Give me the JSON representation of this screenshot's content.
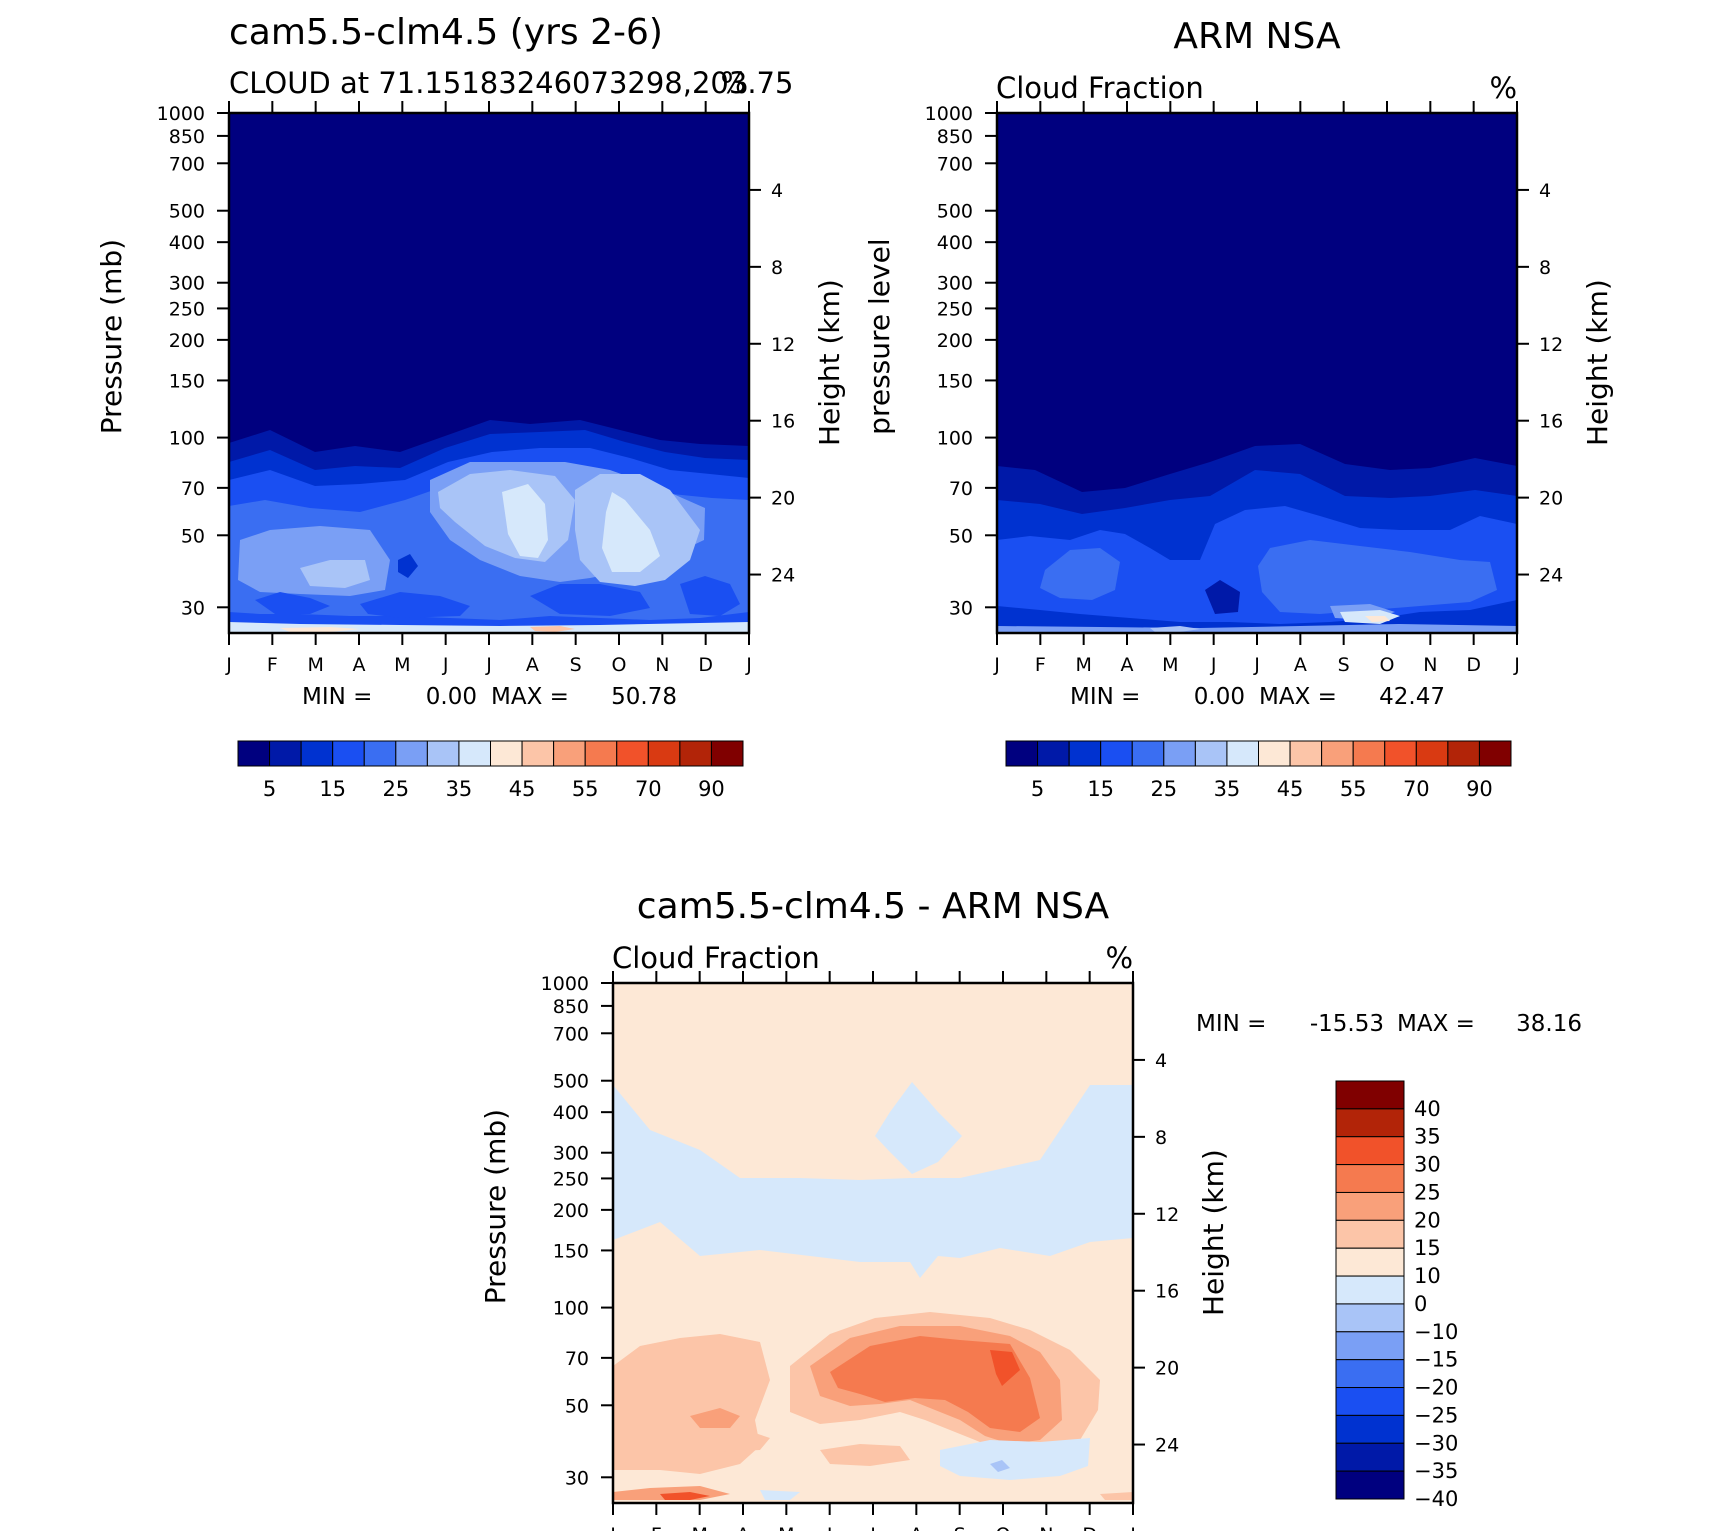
{
  "chart_data": [
    {
      "type": "heatmap",
      "title": "cam5.5-clm4.5 (yrs 2-6)",
      "subtitle": "CLOUD at 71.15183246073298,203.75",
      "units": "%",
      "ylabel": "Pressure (mb)",
      "ylabel_right": "Height (km)",
      "x_ticks": [
        "J",
        "F",
        "M",
        "A",
        "M",
        "J",
        "J",
        "A",
        "S",
        "O",
        "N",
        "D",
        "J"
      ],
      "y_ticks": [
        30,
        50,
        70,
        100,
        150,
        200,
        250,
        300,
        400,
        500,
        700,
        850,
        1000
      ],
      "y_right_ticks": [
        24,
        20,
        16,
        12,
        8,
        4
      ],
      "ylim": [
        1000,
        25
      ],
      "yscale": "log",
      "min_label": "MIN =",
      "min_value": "0.00",
      "max_label": "MAX =",
      "max_value": "50.78",
      "colorbar": {
        "orientation": "horizontal",
        "colors": [
          "#00007f",
          "#0019a8",
          "#0032d0",
          "#1a4ff2",
          "#3a6ef2",
          "#7a9ff5",
          "#a9c4f7",
          "#d6e8fb",
          "#fde8d6",
          "#fcc5a8",
          "#f9a07a",
          "#f57a4f",
          "#f1522a",
          "#d93a12",
          "#b22408",
          "#800000"
        ],
        "labels": [
          "5",
          "15",
          "25",
          "35",
          "45",
          "55",
          "70",
          "90"
        ]
      }
    },
    {
      "type": "heatmap",
      "title": "ARM NSA",
      "subtitle": "Cloud Fraction",
      "units": "%",
      "ylabel": "pressure level",
      "ylabel_right": "Height (km)",
      "x_ticks": [
        "J",
        "F",
        "M",
        "A",
        "M",
        "J",
        "J",
        "A",
        "S",
        "O",
        "N",
        "D",
        "J"
      ],
      "y_ticks": [
        30,
        50,
        70,
        100,
        150,
        200,
        250,
        300,
        400,
        500,
        700,
        850,
        1000
      ],
      "y_right_ticks": [
        24,
        20,
        16,
        12,
        8,
        4
      ],
      "ylim": [
        1000,
        25
      ],
      "yscale": "log",
      "min_label": "MIN =",
      "min_value": "0.00",
      "max_label": "MAX =",
      "max_value": "42.47",
      "colorbar": {
        "orientation": "horizontal",
        "colors": [
          "#00007f",
          "#0019a8",
          "#0032d0",
          "#1a4ff2",
          "#3a6ef2",
          "#7a9ff5",
          "#a9c4f7",
          "#d6e8fb",
          "#fde8d6",
          "#fcc5a8",
          "#f9a07a",
          "#f57a4f",
          "#f1522a",
          "#d93a12",
          "#b22408",
          "#800000"
        ],
        "labels": [
          "5",
          "15",
          "25",
          "35",
          "45",
          "55",
          "70",
          "90"
        ]
      }
    },
    {
      "type": "heatmap",
      "title": "cam5.5-clm4.5 - ARM NSA",
      "subtitle": "Cloud Fraction",
      "units": "%",
      "ylabel": "Pressure (mb)",
      "ylabel_right": "Height (km)",
      "x_ticks": [
        "J",
        "F",
        "M",
        "A",
        "M",
        "J",
        "J",
        "A",
        "S",
        "O",
        "N",
        "D",
        "J"
      ],
      "y_ticks": [
        30,
        50,
        70,
        100,
        150,
        200,
        250,
        300,
        400,
        500,
        700,
        850,
        1000
      ],
      "y_right_ticks": [
        24,
        20,
        16,
        12,
        8,
        4
      ],
      "ylim": [
        1000,
        25
      ],
      "yscale": "log",
      "min_label": "MIN =",
      "min_value": "-15.53",
      "max_label": "MAX =",
      "max_value": "38.16",
      "colorbar": {
        "orientation": "vertical",
        "colors": [
          "#800000",
          "#b22408",
          "#f1522a",
          "#f57a4f",
          "#f9a07a",
          "#fcc5a8",
          "#fde8d6",
          "#d6e8fb",
          "#a9c4f7",
          "#7a9ff5",
          "#3a6ef2",
          "#1a4ff2",
          "#0032d0",
          "#0019a8",
          "#00007f"
        ],
        "labels": [
          "40",
          "35",
          "30",
          "25",
          "20",
          "15",
          "10",
          "0",
          "-10",
          "-15",
          "-20",
          "-25",
          "-30",
          "-35",
          "-40"
        ]
      }
    }
  ]
}
